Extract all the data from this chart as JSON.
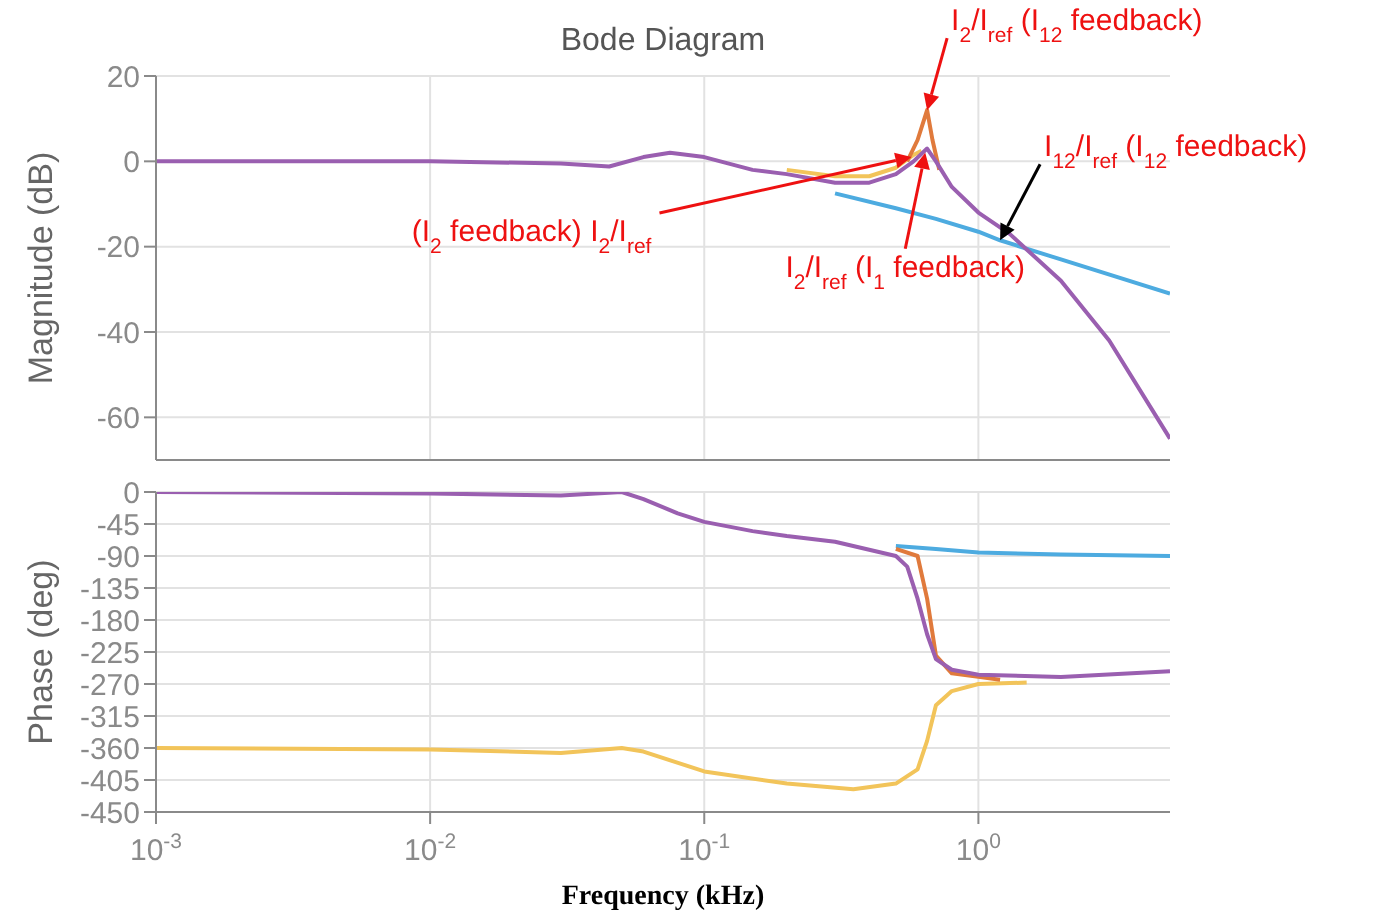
{
  "chart_data": [
    {
      "type": "line",
      "title": "Bode Diagram",
      "ylabel": "Magnitude (dB)",
      "log": "x",
      "grid": true,
      "tick_labels": "y",
      "marker": "none",
      "line_style": "solid",
      "xlim": [
        0.001,
        5
      ],
      "xticks": [
        0.001,
        0.01,
        0.1,
        1
      ],
      "ylim": [
        -70,
        20
      ],
      "yticks": [
        -60,
        -40,
        -20,
        0,
        20
      ],
      "series": [
        {
          "color": "#4dabe0",
          "x": [
            0.3,
            0.5,
            0.7,
            1,
            1.2,
            2,
            5
          ],
          "values": [
            -7.5,
            -11,
            -13.5,
            -16.5,
            -18.5,
            -23,
            -31
          ]
        },
        {
          "color": "#f2c45a",
          "x": [
            0.2,
            0.3,
            0.4,
            0.5,
            0.58,
            0.62
          ],
          "values": [
            -2,
            -3.5,
            -3.5,
            -1.5,
            1.5,
            2.5
          ]
        },
        {
          "color": "#e07a3c",
          "x": [
            0.55,
            0.6,
            0.65,
            0.68,
            0.72
          ],
          "values": [
            0,
            5,
            12,
            5,
            -2
          ]
        },
        {
          "color": "#9a5fb0",
          "x": [
            0.001,
            0.01,
            0.03,
            0.045,
            0.06,
            0.075,
            0.1,
            0.15,
            0.2,
            0.3,
            0.4,
            0.5,
            0.58,
            0.65,
            0.7,
            0.8,
            1,
            1.3,
            2,
            3,
            5
          ],
          "values": [
            0,
            0,
            -0.5,
            -1.2,
            1,
            2,
            1,
            -2,
            -3,
            -5,
            -5,
            -3,
            0,
            3,
            0,
            -6,
            -12,
            -17,
            -28,
            -42,
            -65
          ]
        }
      ],
      "annotations": [
        {
          "text": "I$_{2}$/I$_{ref}$ (I$_{12}$ feedback)",
          "x": 0.65,
          "y": 12
        },
        {
          "text": "(I$_{2}$ feedback) I$_{2}$/I$_{ref}$",
          "x": 0.57,
          "y": 1
        },
        {
          "text": "I$_{2}$/I$_{ref}$ (I$_{1}$ feedback)",
          "x": 0.64,
          "y": 2
        },
        {
          "text": "I$_{12}$/I$_{ref}$ (I$_{12}$ feedback)",
          "x": 1.2,
          "y": -18.5
        }
      ]
    },
    {
      "type": "line",
      "ylabel": "Phase (deg)",
      "xlabel": "Frequency (kHz)",
      "log": "x",
      "grid": true,
      "marker": "none",
      "line_style": "solid",
      "xlim": [
        0.001,
        5
      ],
      "xticks": [
        {
          "value": 0.001,
          "label": "10$^{-3}$"
        },
        {
          "value": 0.01,
          "label": "10$^{-2}$"
        },
        {
          "value": 0.1,
          "label": "10$^{-1}$"
        },
        {
          "value": 1,
          "label": "10$^{0}$"
        }
      ],
      "ylim": [
        -450,
        0
      ],
      "yticks": [
        -450,
        -405,
        -360,
        -315,
        -270,
        -225,
        -180,
        -135,
        -90,
        -45,
        0
      ],
      "series": [
        {
          "color": "#4dabe0",
          "x": [
            0.5,
            0.7,
            1,
            2,
            5
          ],
          "values": [
            -76,
            -80,
            -85,
            -88,
            -90
          ]
        },
        {
          "color": "#f2c45a",
          "x": [
            0.001,
            0.01,
            0.03,
            0.05,
            0.06,
            0.1,
            0.2,
            0.35,
            0.5,
            0.6,
            0.65,
            0.7,
            0.8,
            1,
            1.5
          ],
          "values": [
            -360,
            -362,
            -367,
            -360,
            -365,
            -393,
            -410,
            -418,
            -410,
            -390,
            -350,
            -300,
            -280,
            -270,
            -268
          ]
        },
        {
          "color": "#e07a3c",
          "x": [
            0.5,
            0.6,
            0.65,
            0.7,
            0.8,
            1,
            1.2
          ],
          "values": [
            -80,
            -90,
            -150,
            -230,
            -255,
            -260,
            -264
          ]
        },
        {
          "color": "#9a5fb0",
          "x": [
            0.001,
            0.01,
            0.03,
            0.05,
            0.06,
            0.08,
            0.1,
            0.15,
            0.2,
            0.3,
            0.5,
            0.55,
            0.6,
            0.65,
            0.7,
            0.8,
            1,
            2,
            5
          ],
          "values": [
            0,
            -2,
            -5,
            0,
            -10,
            -30,
            -42,
            -55,
            -62,
            -70,
            -90,
            -105,
            -150,
            -200,
            -235,
            -250,
            -257,
            -260,
            -252
          ]
        }
      ]
    }
  ]
}
